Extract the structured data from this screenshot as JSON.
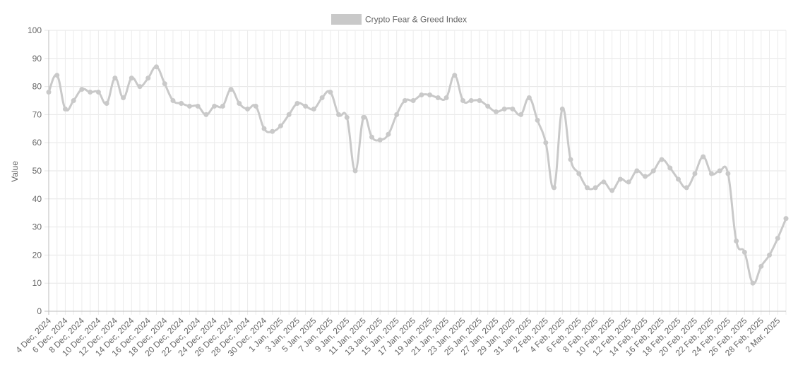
{
  "chart_data": {
    "type": "line",
    "title": "",
    "xlabel": "",
    "ylabel": "Value",
    "ylim": [
      0,
      100
    ],
    "y_ticks": [
      "0",
      "10",
      "20",
      "30",
      "40",
      "50",
      "60",
      "70",
      "80",
      "90",
      "100"
    ],
    "grid": true,
    "legend_position": "top",
    "series_color": "#c9c9c9",
    "series": [
      {
        "name": "Crypto Fear & Greed Index",
        "values": [
          78,
          84,
          72,
          75,
          79,
          78,
          78,
          74,
          83,
          76,
          83,
          80,
          83,
          87,
          81,
          75,
          74,
          73,
          73,
          70,
          73,
          73,
          79,
          74,
          72,
          73,
          65,
          64,
          66,
          70,
          74,
          73,
          72,
          76,
          78,
          70,
          69,
          50,
          69,
          62,
          61,
          63,
          70,
          75,
          75,
          77,
          77,
          76,
          76,
          84,
          75,
          75,
          75,
          73,
          71,
          72,
          72,
          70,
          76,
          68,
          60,
          44,
          72,
          54,
          49,
          44,
          44,
          46,
          43,
          47,
          46,
          50,
          48,
          50,
          54,
          51,
          47,
          44,
          49,
          55,
          49,
          50,
          49,
          25,
          21,
          10,
          16,
          20,
          26,
          33
        ]
      }
    ],
    "x_tick_labels": [
      "4 Dec, 2024",
      "6 Dec, 2024",
      "8 Dec, 2024",
      "10 Dec, 2024",
      "12 Dec, 2024",
      "14 Dec, 2024",
      "16 Dec, 2024",
      "18 Dec, 2024",
      "20 Dec, 2024",
      "22 Dec, 2024",
      "24 Dec, 2024",
      "26 Dec, 2024",
      "28 Dec, 2024",
      "30 Dec, 2024",
      "1 Jan, 2025",
      "3 Jan, 2025",
      "5 Jan, 2025",
      "7 Jan, 2025",
      "9 Jan, 2025",
      "11 Jan, 2025",
      "13 Jan, 2025",
      "15 Jan, 2025",
      "17 Jan, 2025",
      "19 Jan, 2025",
      "21 Jan, 2025",
      "23 Jan, 2025",
      "25 Jan, 2025",
      "27 Jan, 2025",
      "29 Jan, 2025",
      "31 Jan, 2025",
      "2 Feb, 2025",
      "4 Feb, 2025",
      "6 Feb, 2025",
      "8 Feb, 2025",
      "10 Feb, 2025",
      "12 Feb, 2025",
      "14 Feb, 2025",
      "16 Feb, 2025",
      "18 Feb, 2025",
      "20 Feb, 2025",
      "22 Feb, 2025",
      "24 Feb, 2025",
      "26 Feb, 2025",
      "28 Feb, 2025",
      "2 Mar, 2025"
    ]
  }
}
